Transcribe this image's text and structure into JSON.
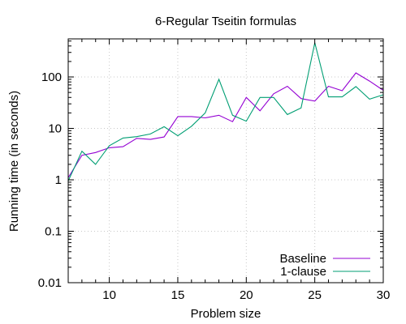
{
  "chart_data": {
    "type": "line",
    "title": "6-Regular Tseitin formulas",
    "xlabel": "Problem size",
    "ylabel": "Running time (in seconds)",
    "xlim": [
      7,
      30
    ],
    "ylim": [
      0.01,
      550
    ],
    "yscale": "log",
    "grid": true,
    "legend_position": "bottom-right",
    "x_ticks": [
      10,
      15,
      20,
      25,
      30
    ],
    "x_tick_labels": [
      "10",
      "15",
      "20",
      "25",
      "30"
    ],
    "y_ticks": [
      0.01,
      0.1,
      1,
      10,
      100
    ],
    "y_tick_labels": [
      "0.01",
      "0.1",
      "1",
      "10",
      "100"
    ],
    "x": [
      7,
      8,
      9,
      10,
      11,
      12,
      13,
      14,
      15,
      16,
      17,
      18,
      19,
      20,
      21,
      22,
      23,
      24,
      25,
      26,
      27,
      28,
      29,
      30
    ],
    "series": [
      {
        "name": "Baseline",
        "color": "#9400d3",
        "values": [
          1.1,
          3.0,
          3.4,
          4.2,
          4.4,
          6.4,
          6.1,
          6.8,
          17,
          17,
          16,
          18,
          13.5,
          40,
          22,
          47,
          66,
          38,
          34,
          66,
          54,
          120,
          83,
          55
        ]
      },
      {
        "name": "1-clause",
        "color": "#009e73",
        "values": [
          0.95,
          3.6,
          2.0,
          4.6,
          6.5,
          6.9,
          7.8,
          10.8,
          7.2,
          11,
          20,
          90,
          18,
          13.8,
          40,
          40,
          18.6,
          25,
          460,
          41,
          41,
          65,
          37,
          45
        ]
      }
    ]
  }
}
